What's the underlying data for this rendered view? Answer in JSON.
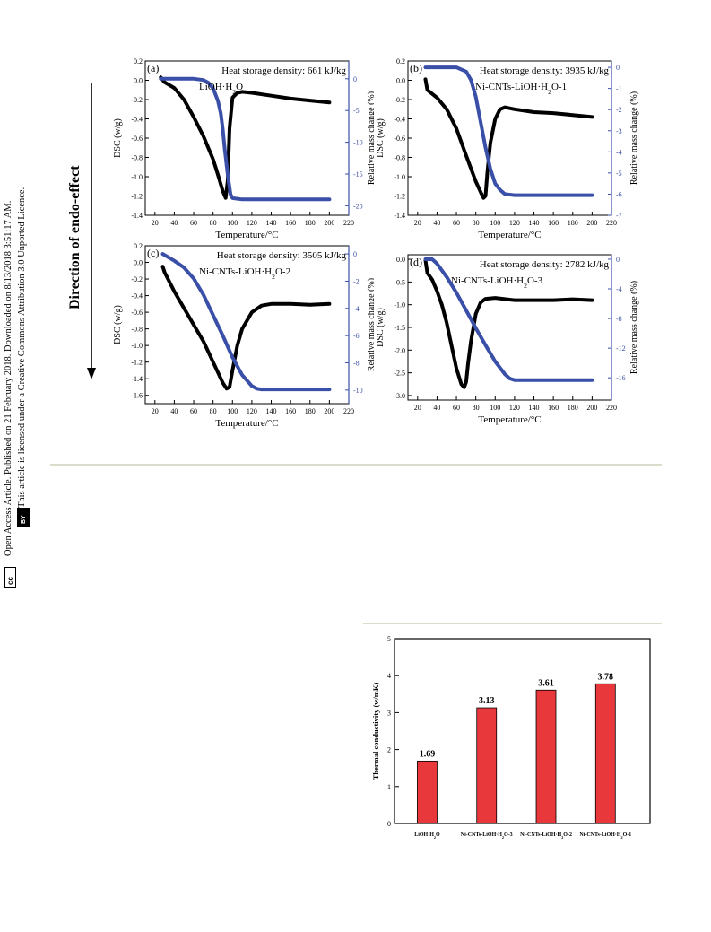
{
  "sidebar": {
    "line1": "Open Access Article. Published on 21 February 2018. Downloaded on 8/13/2018 3:51:17 AM.",
    "line2": "This article is licensed under a Creative Commons Attribution 3.0 Unported Licence.",
    "cc_badge": "cc",
    "by_badge": "BY"
  },
  "direction_label": "Direction of endo-effect",
  "colors": {
    "dsc": "#000000",
    "mass": "#3a4fa8",
    "bar": "#e8383b"
  },
  "chart_data": [
    {
      "type": "line",
      "panel": "(a)",
      "title": "Heat storage density: 661 kJ/kg",
      "sample": "LiOH·H2O",
      "xlabel": "Temperature/°C",
      "ylabel": "DSC (w/g)",
      "y2label": "Relative mass change (%)",
      "xlim": [
        10,
        220
      ],
      "ylim": [
        -1.4,
        0.2
      ],
      "y2lim": [
        -21.5,
        2.8
      ],
      "xticks": [
        20,
        40,
        60,
        80,
        100,
        120,
        140,
        160,
        180,
        200,
        220
      ],
      "yticks": [
        0.2,
        0.0,
        -0.2,
        -0.4,
        -0.6,
        -0.8,
        -1.0,
        -1.2,
        -1.4
      ],
      "y2ticks": [
        0,
        -5,
        -10,
        -15,
        -20
      ],
      "series": [
        {
          "axis": "left",
          "color": "black",
          "x": [
            26,
            30,
            40,
            50,
            60,
            70,
            80,
            85,
            90,
            93,
            95,
            97,
            100,
            105,
            110,
            120,
            140,
            160,
            180,
            200
          ],
          "y": [
            0.03,
            -0.02,
            -0.08,
            -0.2,
            -0.38,
            -0.58,
            -0.82,
            -0.98,
            -1.15,
            -1.22,
            -1.05,
            -0.5,
            -0.18,
            -0.13,
            -0.12,
            -0.13,
            -0.16,
            -0.19,
            -0.21,
            -0.23
          ]
        },
        {
          "axis": "right",
          "color": "blue",
          "x": [
            26,
            40,
            60,
            70,
            75,
            80,
            85,
            88,
            90,
            92,
            95,
            98,
            100,
            110,
            120,
            150,
            200
          ],
          "y": [
            0,
            0,
            0,
            -0.2,
            -0.6,
            -1.5,
            -3.5,
            -5.5,
            -8,
            -11,
            -15,
            -18.2,
            -18.8,
            -19.0,
            -19.0,
            -19.0,
            -19.0
          ]
        }
      ]
    },
    {
      "type": "line",
      "panel": "(b)",
      "title": "Heat storage density: 3935 kJ/kg",
      "sample": "Ni-CNTs-LiOH·H2O-1",
      "xlabel": "Temperature/°C",
      "ylabel": "DSC (w/g)",
      "y2label": "Relative mass change (%)",
      "xlim": [
        10,
        220
      ],
      "ylim": [
        -1.4,
        0.2
      ],
      "y2lim": [
        -7,
        0.3
      ],
      "xticks": [
        20,
        40,
        60,
        80,
        100,
        120,
        140,
        160,
        180,
        200,
        220
      ],
      "yticks": [
        0.2,
        0.0,
        -0.2,
        -0.4,
        -0.6,
        -0.8,
        -1.0,
        -1.2,
        -1.4
      ],
      "y2ticks": [
        0,
        -1,
        -2,
        -3,
        -4,
        -5,
        -6,
        -7
      ],
      "series": [
        {
          "axis": "left",
          "color": "black",
          "x": [
            28,
            30,
            40,
            50,
            60,
            70,
            80,
            85,
            88,
            90,
            92,
            95,
            100,
            105,
            110,
            120,
            140,
            160,
            180,
            200
          ],
          "y": [
            0.01,
            -0.1,
            -0.18,
            -0.3,
            -0.5,
            -0.78,
            -1.05,
            -1.16,
            -1.22,
            -1.2,
            -0.95,
            -0.65,
            -0.4,
            -0.3,
            -0.28,
            -0.3,
            -0.33,
            -0.34,
            -0.36,
            -0.38
          ]
        },
        {
          "axis": "right",
          "color": "blue",
          "x": [
            28,
            50,
            60,
            70,
            75,
            80,
            85,
            90,
            95,
            100,
            105,
            110,
            120,
            150,
            200
          ],
          "y": [
            0,
            0,
            0,
            -0.2,
            -0.6,
            -1.4,
            -2.6,
            -3.8,
            -4.8,
            -5.5,
            -5.8,
            -6.0,
            -6.05,
            -6.05,
            -6.05
          ]
        }
      ]
    },
    {
      "type": "line",
      "panel": "(c)",
      "title": "Heat storage density: 3505 kJ/kg",
      "sample": "Ni-CNTs-LiOH·H2O-2",
      "xlabel": "Temperature/°C",
      "ylabel": "DSC (w/g)",
      "y2label": "Relative mass change (%)",
      "xlim": [
        10,
        220
      ],
      "ylim": [
        -1.7,
        0.2
      ],
      "y2lim": [
        -11,
        0.6
      ],
      "xticks": [
        20,
        40,
        60,
        80,
        100,
        120,
        140,
        160,
        180,
        200,
        220
      ],
      "yticks": [
        0.2,
        0.0,
        -0.2,
        -0.4,
        -0.6,
        -0.8,
        -1.0,
        -1.2,
        -1.4,
        -1.6
      ],
      "y2ticks": [
        0,
        -2,
        -4,
        -6,
        -8,
        -10
      ],
      "series": [
        {
          "axis": "left",
          "color": "black",
          "x": [
            28,
            30,
            40,
            50,
            60,
            70,
            80,
            90,
            94,
            97,
            100,
            105,
            110,
            120,
            130,
            140,
            160,
            180,
            200
          ],
          "y": [
            -0.05,
            -0.12,
            -0.35,
            -0.55,
            -0.75,
            -0.95,
            -1.2,
            -1.45,
            -1.52,
            -1.5,
            -1.3,
            -1.0,
            -0.8,
            -0.6,
            -0.52,
            -0.5,
            -0.5,
            -0.51,
            -0.5
          ]
        },
        {
          "axis": "right",
          "color": "blue",
          "x": [
            28,
            40,
            50,
            60,
            70,
            80,
            90,
            100,
            110,
            120,
            125,
            130,
            150,
            200
          ],
          "y": [
            0,
            -0.5,
            -1.0,
            -1.8,
            -3.0,
            -4.5,
            -6.0,
            -7.6,
            -8.9,
            -9.7,
            -9.9,
            -9.95,
            -9.95,
            -9.95
          ]
        }
      ]
    },
    {
      "type": "line",
      "panel": "(d)",
      "title": "Heat storage density: 2782 kJ/kg",
      "sample": "Ni-CNTs-LiOH·H2O-3",
      "xlabel": "Temperature/°C",
      "ylabel": "DSC (w/g)",
      "y2label": "Relative mass change (%)",
      "xlim": [
        10,
        220
      ],
      "ylim": [
        -3.1,
        0.1
      ],
      "y2lim": [
        -19,
        0.6
      ],
      "xticks": [
        20,
        40,
        60,
        80,
        100,
        120,
        140,
        160,
        180,
        200,
        220
      ],
      "yticks": [
        0.0,
        -0.5,
        -1.0,
        -1.5,
        -2.0,
        -2.5,
        -3.0
      ],
      "y2ticks": [
        0,
        -4,
        -8,
        -12,
        -16
      ],
      "series": [
        {
          "axis": "left",
          "color": "black",
          "x": [
            28,
            30,
            35,
            40,
            45,
            50,
            55,
            60,
            65,
            68,
            70,
            72,
            75,
            80,
            85,
            90,
            100,
            120,
            140,
            160,
            180,
            200
          ],
          "y": [
            -0.02,
            -0.3,
            -0.45,
            -0.7,
            -1.0,
            -1.4,
            -1.9,
            -2.4,
            -2.75,
            -2.82,
            -2.7,
            -2.3,
            -1.8,
            -1.2,
            -0.95,
            -0.87,
            -0.85,
            -0.9,
            -0.9,
            -0.9,
            -0.88,
            -0.9
          ]
        },
        {
          "axis": "right",
          "color": "blue",
          "x": [
            28,
            35,
            40,
            50,
            60,
            70,
            80,
            90,
            100,
            110,
            115,
            120,
            150,
            200
          ],
          "y": [
            0,
            0,
            -0.6,
            -2.4,
            -4.5,
            -6.9,
            -9.3,
            -11.6,
            -13.8,
            -15.5,
            -16.1,
            -16.3,
            -16.3,
            -16.3
          ]
        }
      ]
    },
    {
      "type": "bar",
      "xlabel": "",
      "ylabel": "Thermal conductivity (w/mK)",
      "categories": [
        "LiOH·H2O",
        "Ni-CNTs-LiOH·H2O-3",
        "Ni-CNTs-LiOH·H2O-2",
        "Ni-CNTs-LiOH·H2O-1"
      ],
      "values": [
        1.69,
        3.13,
        3.61,
        3.78
      ],
      "labels": [
        "1.69",
        "3.13",
        "3.61",
        "3.78"
      ],
      "ylim": [
        0,
        5
      ],
      "yticks": [
        0,
        1,
        2,
        3,
        4,
        5
      ]
    }
  ]
}
